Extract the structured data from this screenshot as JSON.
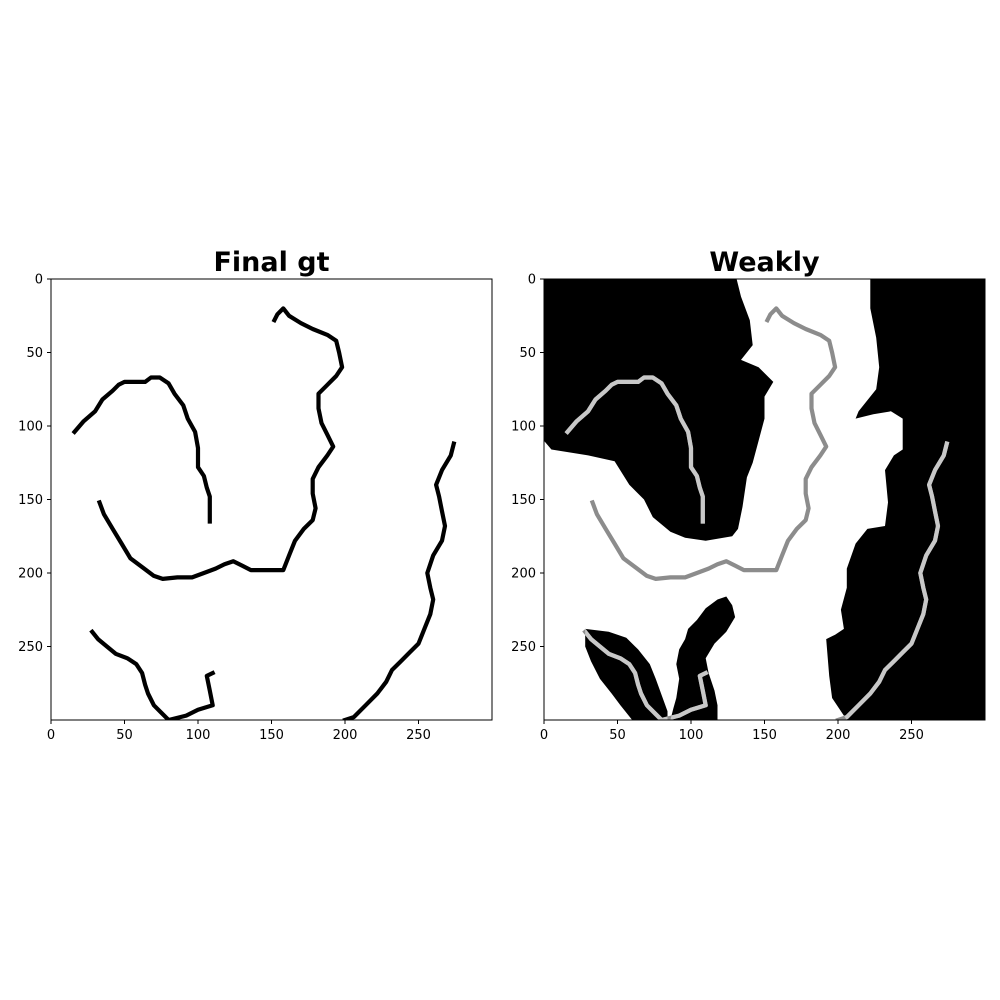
{
  "panels": [
    {
      "title": "Final gt",
      "x_ticks": [
        "0",
        "50",
        "100",
        "150",
        "200",
        "250"
      ],
      "y_ticks": [
        "0",
        "50",
        "100",
        "150",
        "200",
        "250"
      ],
      "background_color": "#ffffff",
      "curve_color": "#000000"
    },
    {
      "title": "Weakly",
      "x_ticks": [
        "0",
        "50",
        "100",
        "150",
        "200",
        "250"
      ],
      "y_ticks": [
        "0",
        "50",
        "100",
        "150",
        "200",
        "250"
      ],
      "mask_color": "#000000",
      "curve_color_on_white": "#8c8c8c",
      "curve_color_on_black": "#c8c8c8"
    }
  ],
  "image_size": [
    300,
    300
  ],
  "curves": [
    [
      [
        16,
        104
      ],
      [
        22,
        97
      ],
      [
        30,
        90
      ],
      [
        35,
        82
      ],
      [
        42,
        76
      ],
      [
        46,
        72
      ],
      [
        50,
        70
      ],
      [
        58,
        70
      ],
      [
        64,
        70
      ],
      [
        68,
        67
      ],
      [
        74,
        67
      ],
      [
        80,
        71
      ],
      [
        84,
        78
      ],
      [
        90,
        86
      ],
      [
        93,
        95
      ],
      [
        98,
        104
      ],
      [
        100,
        115
      ],
      [
        100,
        128
      ],
      [
        104,
        134
      ],
      [
        106,
        142
      ],
      [
        108,
        148
      ],
      [
        108,
        165
      ]
    ],
    [
      [
        33,
        152
      ],
      [
        36,
        160
      ],
      [
        42,
        170
      ],
      [
        48,
        180
      ],
      [
        54,
        190
      ],
      [
        62,
        196
      ],
      [
        70,
        202
      ],
      [
        76,
        204
      ],
      [
        86,
        203
      ],
      [
        96,
        203
      ],
      [
        104,
        200
      ],
      [
        112,
        197
      ],
      [
        118,
        194
      ],
      [
        124,
        192
      ],
      [
        130,
        195
      ],
      [
        136,
        198
      ],
      [
        148,
        198
      ],
      [
        158,
        198
      ],
      [
        162,
        188
      ],
      [
        166,
        178
      ],
      [
        172,
        170
      ],
      [
        178,
        164
      ],
      [
        180,
        156
      ],
      [
        178,
        146
      ],
      [
        178,
        136
      ],
      [
        182,
        128
      ],
      [
        188,
        120
      ],
      [
        192,
        114
      ],
      [
        188,
        106
      ],
      [
        184,
        98
      ],
      [
        182,
        88
      ],
      [
        182,
        78
      ],
      [
        188,
        72
      ],
      [
        194,
        66
      ],
      [
        198,
        60
      ],
      [
        196,
        50
      ],
      [
        194,
        42
      ],
      [
        188,
        38
      ],
      [
        178,
        34
      ],
      [
        170,
        30
      ],
      [
        162,
        25
      ],
      [
        158,
        20
      ],
      [
        154,
        24
      ],
      [
        152,
        28
      ]
    ],
    [
      [
        28,
        240
      ],
      [
        32,
        245
      ],
      [
        38,
        250
      ],
      [
        44,
        255
      ],
      [
        52,
        258
      ],
      [
        58,
        262
      ],
      [
        62,
        268
      ],
      [
        64,
        276
      ],
      [
        66,
        282
      ],
      [
        70,
        290
      ],
      [
        76,
        296
      ],
      [
        80,
        300
      ]
    ],
    [
      [
        80,
        300
      ],
      [
        92,
        297
      ],
      [
        100,
        293
      ],
      [
        110,
        290
      ],
      [
        108,
        280
      ],
      [
        106,
        270
      ],
      [
        110,
        268
      ]
    ],
    [
      [
        200,
        300
      ],
      [
        206,
        298
      ],
      [
        214,
        290
      ],
      [
        222,
        282
      ],
      [
        228,
        274
      ],
      [
        232,
        266
      ],
      [
        238,
        260
      ],
      [
        244,
        254
      ],
      [
        250,
        248
      ],
      [
        254,
        238
      ],
      [
        258,
        228
      ],
      [
        260,
        218
      ],
      [
        258,
        210
      ],
      [
        256,
        200
      ],
      [
        260,
        188
      ],
      [
        266,
        178
      ],
      [
        268,
        168
      ],
      [
        266,
        158
      ],
      [
        264,
        148
      ],
      [
        262,
        140
      ],
      [
        266,
        130
      ],
      [
        272,
        120
      ],
      [
        274,
        112
      ]
    ]
  ],
  "weak_mask_polygons": [
    [
      [
        0,
        0
      ],
      [
        131,
        0
      ],
      [
        134,
        12
      ],
      [
        140,
        28
      ],
      [
        142,
        45
      ],
      [
        134,
        55
      ],
      [
        146,
        60
      ],
      [
        156,
        70
      ],
      [
        150,
        80
      ],
      [
        150,
        95
      ],
      [
        146,
        110
      ],
      [
        142,
        125
      ],
      [
        138,
        135
      ],
      [
        135,
        155
      ],
      [
        132,
        170
      ],
      [
        128,
        175
      ],
      [
        110,
        178
      ],
      [
        96,
        176
      ],
      [
        86,
        172
      ],
      [
        74,
        162
      ],
      [
        68,
        150
      ],
      [
        58,
        140
      ],
      [
        48,
        124
      ],
      [
        30,
        120
      ],
      [
        5,
        116
      ],
      [
        0,
        110
      ]
    ],
    [
      [
        222,
        0
      ],
      [
        300,
        0
      ],
      [
        300,
        300
      ],
      [
        206,
        300
      ],
      [
        196,
        285
      ],
      [
        194,
        270
      ],
      [
        192,
        245
      ],
      [
        198,
        242
      ],
      [
        204,
        238
      ],
      [
        202,
        225
      ],
      [
        206,
        210
      ],
      [
        206,
        197
      ],
      [
        212,
        180
      ],
      [
        220,
        170
      ],
      [
        232,
        168
      ],
      [
        234,
        152
      ],
      [
        232,
        130
      ],
      [
        238,
        120
      ],
      [
        244,
        116
      ],
      [
        244,
        95
      ],
      [
        236,
        90
      ],
      [
        224,
        92
      ],
      [
        212,
        95
      ],
      [
        214,
        90
      ],
      [
        226,
        75
      ],
      [
        228,
        60
      ],
      [
        226,
        40
      ],
      [
        222,
        20
      ]
    ],
    [
      [
        28,
        238
      ],
      [
        44,
        240
      ],
      [
        56,
        244
      ],
      [
        64,
        252
      ],
      [
        72,
        262
      ],
      [
        76,
        272
      ],
      [
        80,
        283
      ],
      [
        84,
        294
      ],
      [
        84,
        300
      ],
      [
        60,
        300
      ],
      [
        52,
        290
      ],
      [
        46,
        282
      ],
      [
        38,
        272
      ],
      [
        32,
        260
      ],
      [
        28,
        250
      ]
    ],
    [
      [
        98,
        238
      ],
      [
        104,
        232
      ],
      [
        110,
        224
      ],
      [
        118,
        218
      ],
      [
        124,
        216
      ],
      [
        128,
        222
      ],
      [
        130,
        230
      ],
      [
        124,
        240
      ],
      [
        116,
        248
      ],
      [
        110,
        258
      ],
      [
        112,
        268
      ],
      [
        116,
        280
      ],
      [
        118,
        290
      ],
      [
        118,
        300
      ],
      [
        86,
        300
      ],
      [
        88,
        292
      ],
      [
        90,
        285
      ],
      [
        92,
        272
      ],
      [
        90,
        262
      ],
      [
        92,
        252
      ],
      [
        96,
        245
      ]
    ]
  ]
}
